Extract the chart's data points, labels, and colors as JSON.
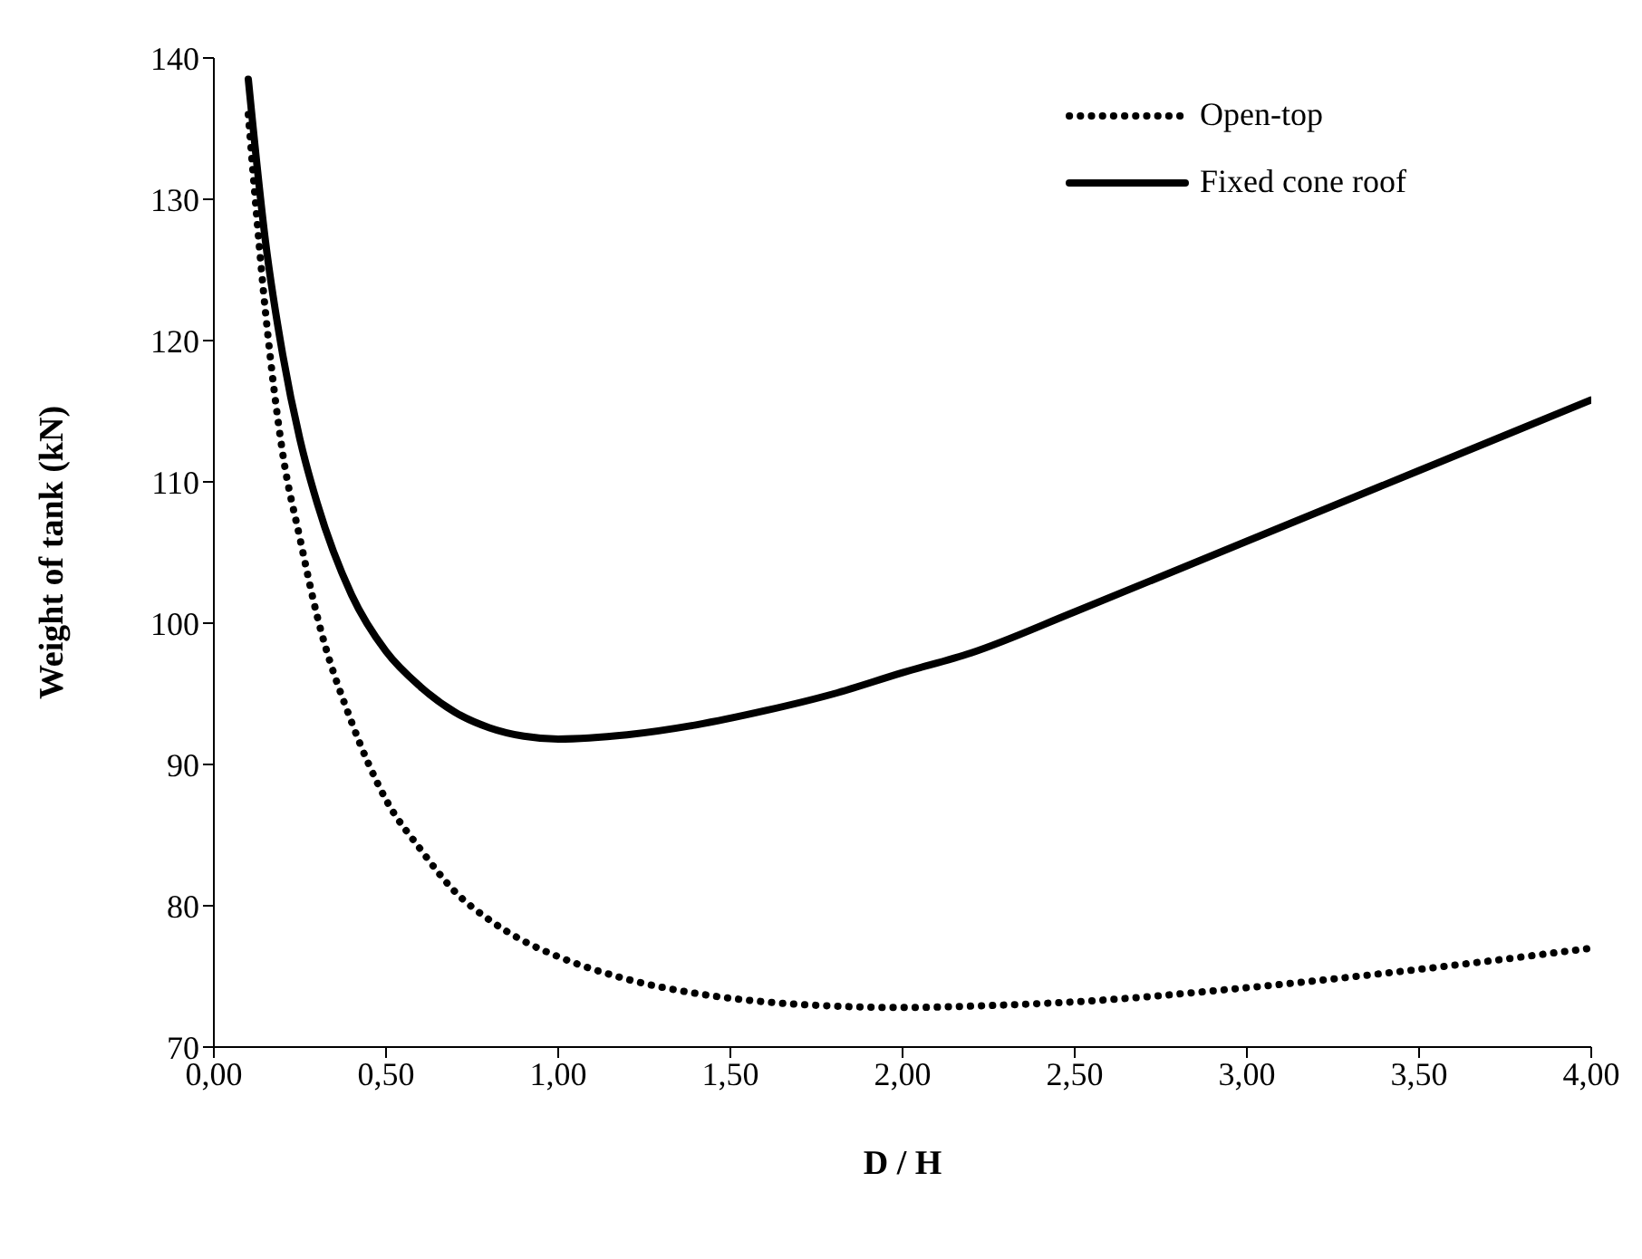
{
  "chart_data": {
    "type": "line",
    "xlabel": "D / H",
    "ylabel": "Weight of tank (kN)",
    "xlim": [
      0,
      4
    ],
    "xticks": [
      {
        "value": 0,
        "label": "0,00"
      },
      {
        "value": 0.5,
        "label": "0,50"
      },
      {
        "value": 1,
        "label": "1,00"
      },
      {
        "value": 1.5,
        "label": "1,50"
      },
      {
        "value": 2,
        "label": "2,00"
      },
      {
        "value": 2.5,
        "label": "2,50"
      },
      {
        "value": 3,
        "label": "3,00"
      },
      {
        "value": 3.5,
        "label": "3,50"
      },
      {
        "value": 4,
        "label": "4,00"
      }
    ],
    "ylim": [
      70,
      140
    ],
    "yticks": [
      70,
      80,
      90,
      100,
      110,
      120,
      130,
      140
    ],
    "x": [
      0.1,
      0.15,
      0.2,
      0.25,
      0.3,
      0.4,
      0.5,
      0.6,
      0.7,
      0.8,
      0.9,
      1.0,
      1.2,
      1.4,
      1.6,
      1.8,
      2.0,
      2.2,
      2.5,
      3.0,
      3.5,
      4.0
    ],
    "series": [
      {
        "name": "Open-top",
        "color": "#000000",
        "line_style": "dotted",
        "values": [
          136,
          122,
          112,
          106,
          100.5,
          93,
          87.5,
          84,
          81,
          79,
          77.5,
          76.4,
          74.8,
          73.8,
          73.2,
          72.9,
          72.8,
          72.9,
          73.2,
          74.2,
          75.5,
          77
        ]
      },
      {
        "name": "Fixed cone roof",
        "color": "#000000",
        "line_style": "solid",
        "values": [
          138.5,
          127,
          119,
          113,
          108.5,
          102,
          98,
          95.5,
          93.7,
          92.6,
          92,
          91.8,
          92.1,
          92.8,
          93.8,
          95,
          96.5,
          97.9,
          100.8,
          105.8,
          110.8,
          115.8
        ]
      }
    ],
    "grid": false,
    "legend": "top right",
    "marker": "none"
  }
}
